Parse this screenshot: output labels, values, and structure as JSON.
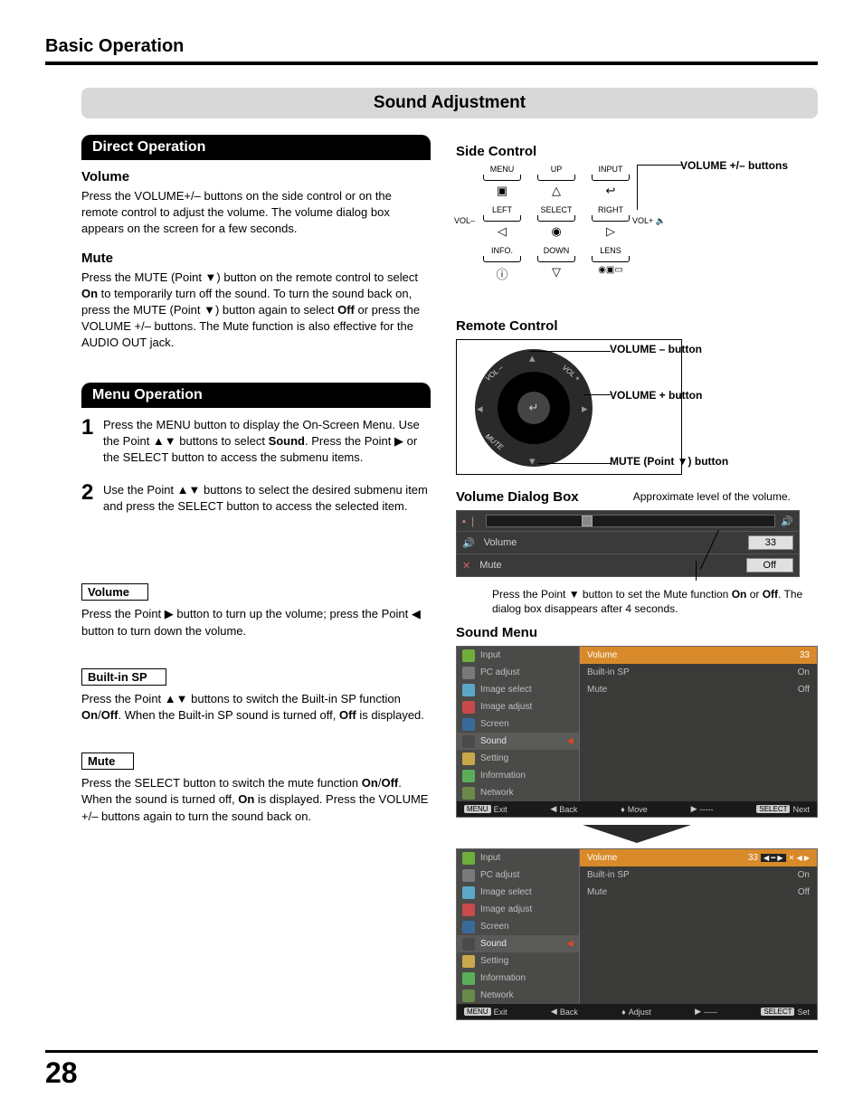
{
  "page": {
    "chapter": "Basic Operation",
    "section": "Sound Adjustment",
    "number": "28"
  },
  "left": {
    "direct_operation": {
      "title": "Direct Operation",
      "volume": {
        "heading": "Volume",
        "text": "Press the VOLUME+/– buttons on the side control or on the remote control to adjust the volume. The volume dialog box appears on the screen for a few seconds."
      },
      "mute": {
        "heading": "Mute",
        "text_a": "Press the MUTE (Point ▼) button on the remote control to select ",
        "on": "On",
        "text_b": " to temporarily turn off the sound. To turn the sound back on, press the MUTE (Point ▼) button again to select ",
        "off": "Off",
        "text_c": " or press the VOLUME +/– buttons. The Mute function is also effective for the AUDIO OUT jack."
      }
    },
    "menu_operation": {
      "title": "Menu Operation",
      "step1": {
        "num": "1",
        "text_a": "Press the MENU button to display the On-Screen Menu. Use the Point ▲▼ buttons to select ",
        "bold": "Sound",
        "text_b": ". Press the Point ▶ or the SELECT button to access the submenu items."
      },
      "step2": {
        "num": "2",
        "text": "Use the Point ▲▼ buttons to select the desired submenu item and press the SELECT button to access the selected item."
      },
      "sub_volume": {
        "label": "Volume",
        "text": "Press the Point ▶ button to turn up the volume; press the Point ◀ button to turn down the volume."
      },
      "sub_builtin": {
        "label": "Built-in SP",
        "text_a": "Press the Point ▲▼ buttons to switch the Built-in SP function ",
        "on": "On",
        "slash": "/",
        "off": "Off",
        "text_b": ". When the Built-in SP sound is turned off, ",
        "off2": "Off",
        "text_c": " is displayed."
      },
      "sub_mute": {
        "label": "Mute",
        "text_a": "Press the SELECT button to switch the mute function ",
        "on": "On",
        "slash": "/",
        "off": "Off",
        "text_b": ". When the sound is turned off, ",
        "on2": "On",
        "text_c": " is displayed. Press the VOLUME +/– buttons again to turn the sound back on."
      }
    }
  },
  "right": {
    "side_control": {
      "heading": "Side Control",
      "callout": "VOLUME +/– buttons",
      "buttons": {
        "menu": "MENU",
        "up": "UP",
        "input": "INPUT",
        "left": "LEFT",
        "select": "SELECT",
        "right": "RIGHT",
        "info": "INFO.",
        "down": "DOWN",
        "lens": "LENS",
        "volm": "VOL–",
        "volp": "VOL+"
      },
      "icons": {
        "menu": "▣",
        "up": "△",
        "input": "↩",
        "left": "◁",
        "select": "◉",
        "right": "▷",
        "info": "ⓘ",
        "down": "▽",
        "lens": "◉▣▭",
        "speaker": "🔈"
      }
    },
    "remote_control": {
      "heading": "Remote Control",
      "callouts": {
        "volm": "VOLUME – button",
        "volp": "VOLUME + button",
        "mute": "MUTE (Point ▼) button"
      },
      "labels": {
        "volm": "VOL –",
        "volp": "VOL +",
        "mute": "MUTE"
      }
    },
    "volume_dialog": {
      "heading": "Volume Dialog Box",
      "approx_note": "Approximate level of the volume.",
      "rows": {
        "volume": "Volume",
        "mute": "Mute",
        "val": "33",
        "off": "Off"
      },
      "footnote_a": "Press the Point ▼ button to set the Mute function ",
      "on": "On",
      "or": " or ",
      "off": "Off",
      "footnote_b": ". The dialog box disappears after 4 seconds."
    },
    "sound_menu": {
      "heading": "Sound Menu",
      "side_items": [
        {
          "label": "Input",
          "color": "#6fae3b"
        },
        {
          "label": "PC adjust",
          "color": "#7a7a7a"
        },
        {
          "label": "Image select",
          "color": "#5aa8c8"
        },
        {
          "label": "Image adjust",
          "color": "#c84a4a"
        },
        {
          "label": "Screen",
          "color": "#3a6a9a"
        },
        {
          "label": "Sound",
          "color": "#4a4a4a",
          "selected": true
        },
        {
          "label": "Setting",
          "color": "#c8a84a"
        },
        {
          "label": "Information",
          "color": "#5aae5a"
        },
        {
          "label": "Network",
          "color": "#6a8a4a"
        }
      ],
      "main1": {
        "hl_left": "Volume",
        "hl_right": "33",
        "rows": [
          [
            "Built-in SP",
            "On"
          ],
          [
            "Mute",
            "Off"
          ]
        ]
      },
      "main2": {
        "hl_left": "Volume",
        "hl_right": "33",
        "rows": [
          [
            "Built-in SP",
            "On"
          ],
          [
            "Mute",
            "Off"
          ]
        ]
      },
      "foot1": {
        "exit": "Exit",
        "back": "Back",
        "move": "Move",
        "dash": "-----",
        "next": "Next",
        "menu_tag": "MENU",
        "sel_tag": "SELECT"
      },
      "foot2": {
        "exit": "Exit",
        "back": "Back",
        "adjust": "Adjust",
        "dash": "-----",
        "set": "Set",
        "menu_tag": "MENU",
        "sel_tag": "SELECT"
      }
    }
  }
}
